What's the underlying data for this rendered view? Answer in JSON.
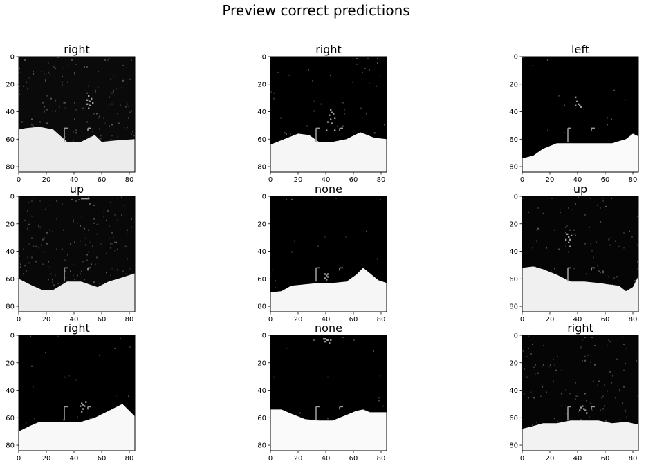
{
  "figure": {
    "title": "Preview correct predictions"
  },
  "chart_data": {
    "type": "image_grid",
    "title": "Preview correct predictions",
    "rows": 3,
    "cols": 3,
    "image_size": [
      84,
      84
    ],
    "colormap": "gray",
    "xticks": [
      0,
      20,
      40,
      60,
      80
    ],
    "yticks": [
      0,
      20,
      40,
      60,
      80
    ],
    "xlim": [
      0,
      84
    ],
    "ylim": [
      84,
      0
    ],
    "panels": [
      {
        "label": "right",
        "noise": 0.18,
        "bg": "#0a0a0a",
        "ground_fill": "#ececec",
        "terrain": [
          [
            0,
            53
          ],
          [
            5,
            52
          ],
          [
            15,
            51
          ],
          [
            25,
            53
          ],
          [
            35,
            62
          ],
          [
            45,
            62
          ],
          [
            55,
            57
          ],
          [
            60,
            62
          ],
          [
            70,
            61
          ],
          [
            84,
            60
          ]
        ],
        "player": [
          [
            49,
            31
          ],
          [
            50,
            28
          ],
          [
            51,
            32
          ],
          [
            52,
            30
          ],
          [
            49,
            34
          ],
          [
            51,
            35
          ],
          [
            50,
            37
          ],
          [
            53,
            33
          ]
        ]
      },
      {
        "label": "right",
        "noise": 0.06,
        "bg": "#000000",
        "ground_fill": "#f6f6f6",
        "terrain": [
          [
            0,
            64
          ],
          [
            10,
            60
          ],
          [
            20,
            56
          ],
          [
            28,
            57
          ],
          [
            35,
            62
          ],
          [
            45,
            62
          ],
          [
            55,
            60
          ],
          [
            65,
            55
          ],
          [
            75,
            59
          ],
          [
            84,
            60
          ]
        ],
        "player": [
          [
            43,
            38
          ],
          [
            44,
            40
          ],
          [
            42,
            42
          ],
          [
            45,
            41
          ],
          [
            43,
            45
          ],
          [
            41,
            47
          ],
          [
            46,
            44
          ],
          [
            44,
            48
          ],
          [
            40,
            53
          ],
          [
            46,
            53
          ]
        ]
      },
      {
        "label": "left",
        "noise": 0.02,
        "bg": "#000000",
        "ground_fill": "#fafafa",
        "terrain": [
          [
            0,
            74
          ],
          [
            8,
            72
          ],
          [
            15,
            67
          ],
          [
            25,
            63
          ],
          [
            35,
            63
          ],
          [
            45,
            63
          ],
          [
            55,
            63
          ],
          [
            65,
            63
          ],
          [
            75,
            60
          ],
          [
            80,
            56
          ],
          [
            84,
            58
          ]
        ],
        "player": [
          [
            38,
            29
          ],
          [
            39,
            32
          ],
          [
            40,
            34
          ],
          [
            41,
            35
          ],
          [
            38,
            35
          ],
          [
            42,
            36
          ]
        ]
      },
      {
        "label": "up",
        "noise": 0.2,
        "bg": "#080808",
        "ground_fill": "#ececec",
        "terrain": [
          [
            0,
            60
          ],
          [
            10,
            65
          ],
          [
            17,
            68
          ],
          [
            25,
            68
          ],
          [
            35,
            62
          ],
          [
            45,
            62
          ],
          [
            57,
            66
          ],
          [
            65,
            62
          ],
          [
            75,
            59
          ],
          [
            84,
            56
          ]
        ],
        "player": [
          [
            45,
            1
          ],
          [
            46,
            1
          ],
          [
            47,
            1
          ],
          [
            48,
            1
          ],
          [
            49,
            1
          ],
          [
            50,
            1
          ]
        ]
      },
      {
        "label": "none",
        "noise": 0.02,
        "bg": "#000000",
        "ground_fill": "#f6f6f6",
        "terrain": [
          [
            0,
            70
          ],
          [
            8,
            69
          ],
          [
            15,
            65
          ],
          [
            25,
            64
          ],
          [
            35,
            63
          ],
          [
            45,
            63
          ],
          [
            55,
            62
          ],
          [
            62,
            57
          ],
          [
            67,
            52
          ],
          [
            72,
            56
          ],
          [
            78,
            61
          ],
          [
            84,
            63
          ]
        ],
        "player": [
          [
            39,
            56
          ],
          [
            40,
            57
          ],
          [
            41,
            58
          ],
          [
            39,
            59
          ],
          [
            40,
            60
          ],
          [
            41,
            56
          ]
        ]
      },
      {
        "label": "up",
        "noise": 0.12,
        "bg": "#050505",
        "ground_fill": "#f0f0f0",
        "terrain": [
          [
            0,
            52
          ],
          [
            8,
            51
          ],
          [
            15,
            53
          ],
          [
            25,
            57
          ],
          [
            35,
            62
          ],
          [
            45,
            62
          ],
          [
            55,
            63
          ],
          [
            62,
            64
          ],
          [
            70,
            65
          ],
          [
            75,
            69
          ],
          [
            80,
            66
          ],
          [
            84,
            58
          ]
        ],
        "player": [
          [
            32,
            27
          ],
          [
            33,
            29
          ],
          [
            34,
            31
          ],
          [
            31,
            31
          ],
          [
            35,
            28
          ],
          [
            33,
            33
          ],
          [
            34,
            36
          ]
        ]
      },
      {
        "label": "right",
        "noise": 0.03,
        "bg": "#000000",
        "ground_fill": "#f8f8f8",
        "terrain": [
          [
            0,
            70
          ],
          [
            8,
            66
          ],
          [
            15,
            63
          ],
          [
            25,
            63
          ],
          [
            35,
            63
          ],
          [
            45,
            63
          ],
          [
            55,
            60
          ],
          [
            65,
            55
          ],
          [
            75,
            50
          ],
          [
            84,
            59
          ]
        ],
        "player": [
          [
            45,
            49
          ],
          [
            46,
            50
          ],
          [
            47,
            51
          ],
          [
            44,
            51
          ],
          [
            46,
            53
          ],
          [
            48,
            48
          ],
          [
            45,
            55
          ]
        ]
      },
      {
        "label": "none",
        "noise": 0.02,
        "bg": "#000000",
        "ground_fill": "#fafafa",
        "terrain": [
          [
            0,
            54
          ],
          [
            8,
            54
          ],
          [
            15,
            57
          ],
          [
            25,
            61
          ],
          [
            35,
            62
          ],
          [
            45,
            62
          ],
          [
            55,
            58
          ],
          [
            62,
            55
          ],
          [
            67,
            54
          ],
          [
            72,
            56
          ],
          [
            84,
            56
          ]
        ],
        "player": [
          [
            38,
            2
          ],
          [
            39,
            2
          ],
          [
            40,
            3
          ],
          [
            41,
            3
          ],
          [
            39,
            4
          ],
          [
            42,
            5
          ],
          [
            43,
            3
          ]
        ]
      },
      {
        "label": "right",
        "noise": 0.14,
        "bg": "#050505",
        "ground_fill": "#f2f2f2",
        "terrain": [
          [
            0,
            68
          ],
          [
            8,
            66
          ],
          [
            15,
            64
          ],
          [
            25,
            64
          ],
          [
            35,
            62
          ],
          [
            45,
            62
          ],
          [
            55,
            62
          ],
          [
            65,
            64
          ],
          [
            75,
            63
          ],
          [
            84,
            65
          ]
        ],
        "player": [
          [
            42,
            52
          ],
          [
            43,
            51
          ],
          [
            44,
            53
          ],
          [
            45,
            54
          ],
          [
            41,
            54
          ],
          [
            46,
            56
          ]
        ]
      }
    ]
  }
}
